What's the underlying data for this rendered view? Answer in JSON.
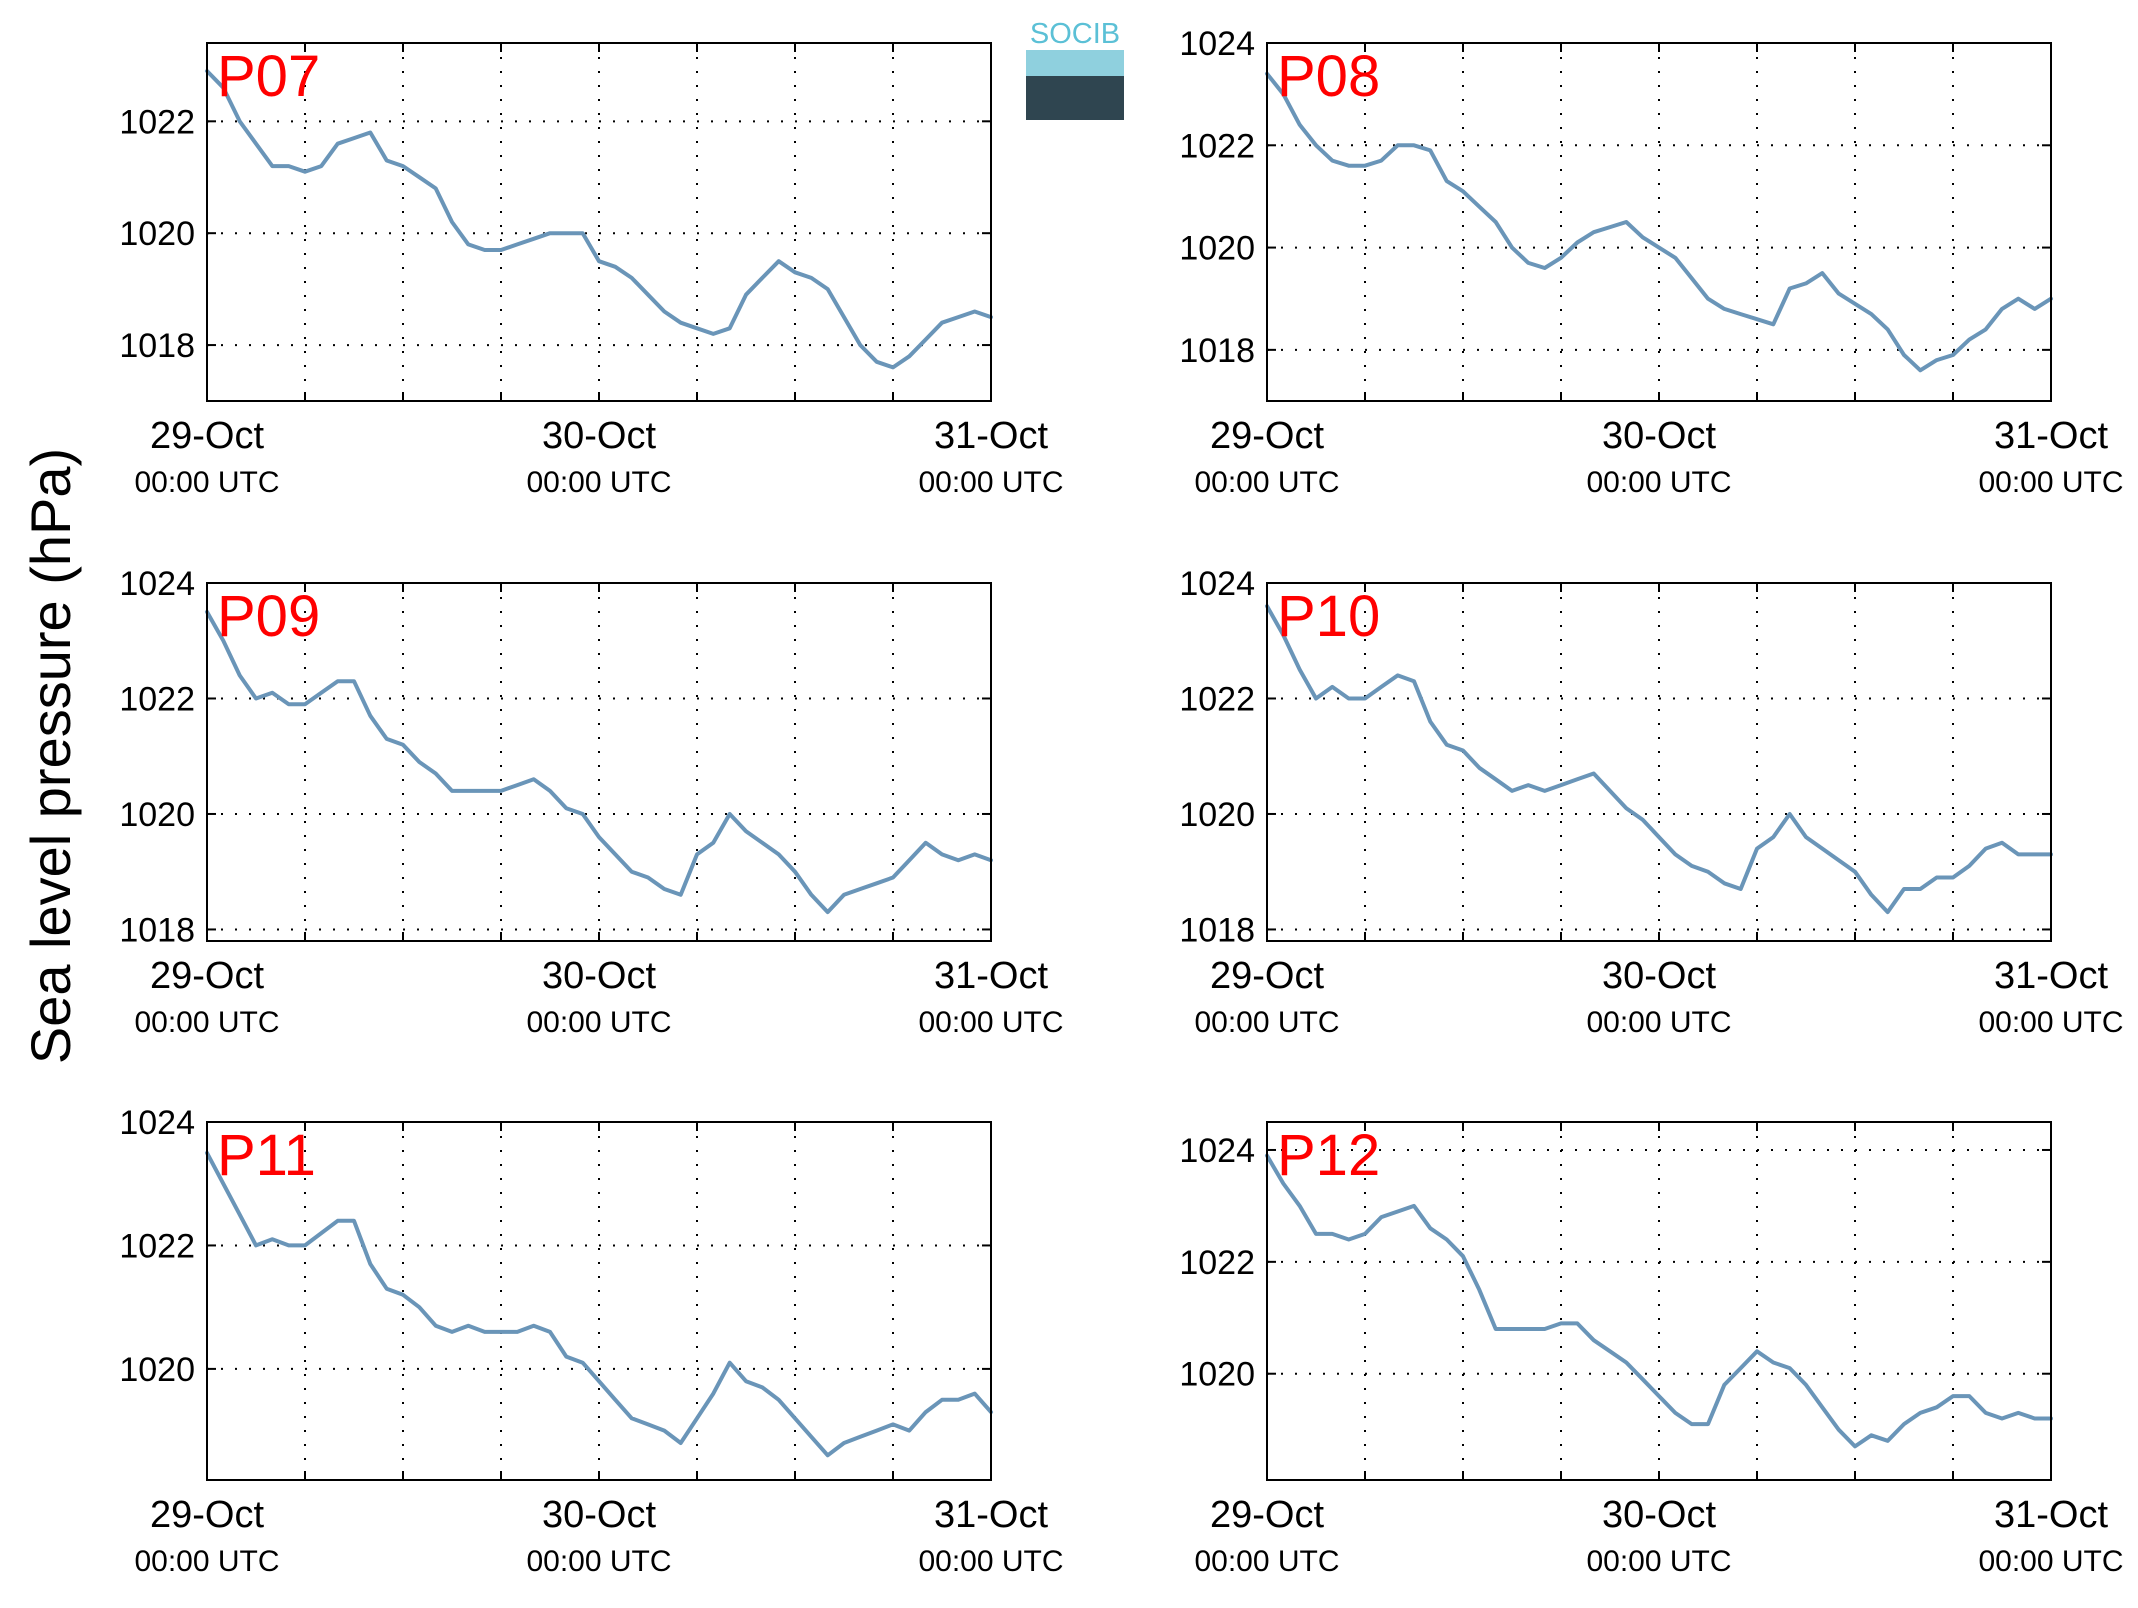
{
  "ylabel": "Sea level pressure (hPa)",
  "logo": {
    "text": "SOCIB",
    "color_top": "#5bc0d6",
    "color_bottom": "#2f4550"
  },
  "colors": {
    "line": "#6a95b8",
    "station_label": "#ff0000",
    "axis": "#000000",
    "grid": "#000000"
  },
  "xticks": [
    {
      "day": "29-Oct",
      "time": "00:00 UTC"
    },
    {
      "day": "30-Oct",
      "time": "00:00 UTC"
    },
    {
      "day": "31-Oct",
      "time": "00:00 UTC"
    }
  ],
  "chart_data": [
    {
      "type": "line",
      "station": "P07",
      "x_range": [
        "29-Oct 00:00 UTC",
        "31-Oct 00:00 UTC"
      ],
      "x_unit": "hours",
      "ylim": [
        1017,
        1023.4
      ],
      "yticks": [
        1018,
        1020,
        1022
      ],
      "grid": true,
      "series": [
        {
          "x": [
            0,
            1,
            2,
            3,
            4,
            5,
            6,
            7,
            8,
            9,
            10,
            11,
            12,
            13,
            14,
            15,
            16,
            17,
            18,
            19,
            20,
            21,
            22,
            23,
            24,
            25,
            26,
            27,
            28,
            29,
            30,
            31,
            32,
            33,
            34,
            35,
            36,
            37,
            38,
            39,
            40,
            41,
            42,
            43,
            44,
            45,
            46,
            47,
            48
          ],
          "values": [
            1022.9,
            1022.6,
            1022.0,
            1021.6,
            1021.2,
            1021.2,
            1021.1,
            1021.2,
            1021.6,
            1021.7,
            1021.8,
            1021.3,
            1021.2,
            1021.0,
            1020.8,
            1020.2,
            1019.8,
            1019.7,
            1019.7,
            1019.8,
            1019.9,
            1020.0,
            1020.0,
            1020.0,
            1019.5,
            1019.4,
            1019.2,
            1018.9,
            1018.6,
            1018.4,
            1018.3,
            1018.2,
            1018.3,
            1018.9,
            1019.2,
            1019.5,
            1019.3,
            1019.2,
            1019.0,
            1018.5,
            1018.0,
            1017.7,
            1017.6,
            1017.8,
            1018.1,
            1018.4,
            1018.5,
            1018.6,
            1018.5
          ]
        }
      ]
    },
    {
      "type": "line",
      "station": "P08",
      "x_range": [
        "29-Oct 00:00 UTC",
        "31-Oct 00:00 UTC"
      ],
      "x_unit": "hours",
      "ylim": [
        1017,
        1024
      ],
      "yticks": [
        1018,
        1020,
        1022,
        1024
      ],
      "grid": true,
      "series": [
        {
          "x": [
            0,
            1,
            2,
            3,
            4,
            5,
            6,
            7,
            8,
            9,
            10,
            11,
            12,
            13,
            14,
            15,
            16,
            17,
            18,
            19,
            20,
            21,
            22,
            23,
            24,
            25,
            26,
            27,
            28,
            29,
            30,
            31,
            32,
            33,
            34,
            35,
            36,
            37,
            38,
            39,
            40,
            41,
            42,
            43,
            44,
            45,
            46,
            47,
            48
          ],
          "values": [
            1023.4,
            1023.0,
            1022.4,
            1022.0,
            1021.7,
            1021.6,
            1021.6,
            1021.7,
            1022.0,
            1022.0,
            1021.9,
            1021.3,
            1021.1,
            1020.8,
            1020.5,
            1020.0,
            1019.7,
            1019.6,
            1019.8,
            1020.1,
            1020.3,
            1020.4,
            1020.5,
            1020.2,
            1020.0,
            1019.8,
            1019.4,
            1019.0,
            1018.8,
            1018.7,
            1018.6,
            1018.5,
            1019.2,
            1019.3,
            1019.5,
            1019.1,
            1018.9,
            1018.7,
            1018.4,
            1017.9,
            1017.6,
            1017.8,
            1017.9,
            1018.2,
            1018.4,
            1018.8,
            1019.0,
            1018.8,
            1019.0
          ]
        }
      ]
    },
    {
      "type": "line",
      "station": "P09",
      "x_range": [
        "29-Oct 00:00 UTC",
        "31-Oct 00:00 UTC"
      ],
      "x_unit": "hours",
      "ylim": [
        1017.8,
        1024
      ],
      "yticks": [
        1018,
        1020,
        1022,
        1024
      ],
      "grid": true,
      "series": [
        {
          "x": [
            0,
            1,
            2,
            3,
            4,
            5,
            6,
            7,
            8,
            9,
            10,
            11,
            12,
            13,
            14,
            15,
            16,
            17,
            18,
            19,
            20,
            21,
            22,
            23,
            24,
            25,
            26,
            27,
            28,
            29,
            30,
            31,
            32,
            33,
            34,
            35,
            36,
            37,
            38,
            39,
            40,
            41,
            42,
            43,
            44,
            45,
            46,
            47,
            48
          ],
          "values": [
            1023.5,
            1023.0,
            1022.4,
            1022.0,
            1022.1,
            1021.9,
            1021.9,
            1022.1,
            1022.3,
            1022.3,
            1021.7,
            1021.3,
            1021.2,
            1020.9,
            1020.7,
            1020.4,
            1020.4,
            1020.4,
            1020.4,
            1020.5,
            1020.6,
            1020.4,
            1020.1,
            1020.0,
            1019.6,
            1019.3,
            1019.0,
            1018.9,
            1018.7,
            1018.6,
            1019.3,
            1019.5,
            1020.0,
            1019.7,
            1019.5,
            1019.3,
            1019.0,
            1018.6,
            1018.3,
            1018.6,
            1018.7,
            1018.8,
            1018.9,
            1019.2,
            1019.5,
            1019.3,
            1019.2,
            1019.3,
            1019.2
          ]
        }
      ]
    },
    {
      "type": "line",
      "station": "P10",
      "x_range": [
        "29-Oct 00:00 UTC",
        "31-Oct 00:00 UTC"
      ],
      "x_unit": "hours",
      "ylim": [
        1017.8,
        1024
      ],
      "yticks": [
        1018,
        1020,
        1022,
        1024
      ],
      "grid": true,
      "series": [
        {
          "x": [
            0,
            1,
            2,
            3,
            4,
            5,
            6,
            7,
            8,
            9,
            10,
            11,
            12,
            13,
            14,
            15,
            16,
            17,
            18,
            19,
            20,
            21,
            22,
            23,
            24,
            25,
            26,
            27,
            28,
            29,
            30,
            31,
            32,
            33,
            34,
            35,
            36,
            37,
            38,
            39,
            40,
            41,
            42,
            43,
            44,
            45,
            46,
            47,
            48
          ],
          "values": [
            1023.6,
            1023.1,
            1022.5,
            1022.0,
            1022.2,
            1022.0,
            1022.0,
            1022.2,
            1022.4,
            1022.3,
            1021.6,
            1021.2,
            1021.1,
            1020.8,
            1020.6,
            1020.4,
            1020.5,
            1020.4,
            1020.5,
            1020.6,
            1020.7,
            1020.4,
            1020.1,
            1019.9,
            1019.6,
            1019.3,
            1019.1,
            1019.0,
            1018.8,
            1018.7,
            1019.4,
            1019.6,
            1020.0,
            1019.6,
            1019.4,
            1019.2,
            1019.0,
            1018.6,
            1018.3,
            1018.7,
            1018.7,
            1018.9,
            1018.9,
            1019.1,
            1019.4,
            1019.5,
            1019.3,
            1019.3,
            1019.3
          ]
        }
      ]
    },
    {
      "type": "line",
      "station": "P11",
      "x_range": [
        "29-Oct 00:00 UTC",
        "31-Oct 00:00 UTC"
      ],
      "x_unit": "hours",
      "ylim": [
        1018.2,
        1024
      ],
      "yticks": [
        1020,
        1022,
        1024
      ],
      "grid": true,
      "series": [
        {
          "x": [
            0,
            1,
            2,
            3,
            4,
            5,
            6,
            7,
            8,
            9,
            10,
            11,
            12,
            13,
            14,
            15,
            16,
            17,
            18,
            19,
            20,
            21,
            22,
            23,
            24,
            25,
            26,
            27,
            28,
            29,
            30,
            31,
            32,
            33,
            34,
            35,
            36,
            37,
            38,
            39,
            40,
            41,
            42,
            43,
            44,
            45,
            46,
            47,
            48
          ],
          "values": [
            1023.5,
            1023.0,
            1022.5,
            1022.0,
            1022.1,
            1022.0,
            1022.0,
            1022.2,
            1022.4,
            1022.4,
            1021.7,
            1021.3,
            1021.2,
            1021.0,
            1020.7,
            1020.6,
            1020.7,
            1020.6,
            1020.6,
            1020.6,
            1020.7,
            1020.6,
            1020.2,
            1020.1,
            1019.8,
            1019.5,
            1019.2,
            1019.1,
            1019.0,
            1018.8,
            1019.2,
            1019.6,
            1020.1,
            1019.8,
            1019.7,
            1019.5,
            1019.2,
            1018.9,
            1018.6,
            1018.8,
            1018.9,
            1019.0,
            1019.1,
            1019.0,
            1019.3,
            1019.5,
            1019.5,
            1019.6,
            1019.3
          ]
        }
      ]
    },
    {
      "type": "line",
      "station": "P12",
      "x_range": [
        "29-Oct 00:00 UTC",
        "31-Oct 00:00 UTC"
      ],
      "x_unit": "hours",
      "ylim": [
        1018.1,
        1024.5
      ],
      "yticks": [
        1020,
        1022,
        1024
      ],
      "grid": true,
      "series": [
        {
          "x": [
            0,
            1,
            2,
            3,
            4,
            5,
            6,
            7,
            8,
            9,
            10,
            11,
            12,
            13,
            14,
            15,
            16,
            17,
            18,
            19,
            20,
            21,
            22,
            23,
            24,
            25,
            26,
            27,
            28,
            29,
            30,
            31,
            32,
            33,
            34,
            35,
            36,
            37,
            38,
            39,
            40,
            41,
            42,
            43,
            44,
            45,
            46,
            47,
            48
          ],
          "values": [
            1023.9,
            1023.4,
            1023.0,
            1022.5,
            1022.5,
            1022.4,
            1022.5,
            1022.8,
            1022.9,
            1023.0,
            1022.6,
            1022.4,
            1022.1,
            1021.5,
            1020.8,
            1020.8,
            1020.8,
            1020.8,
            1020.9,
            1020.9,
            1020.6,
            1020.4,
            1020.2,
            1019.9,
            1019.6,
            1019.3,
            1019.1,
            1019.1,
            1019.8,
            1020.1,
            1020.4,
            1020.2,
            1020.1,
            1019.8,
            1019.4,
            1019.0,
            1018.7,
            1018.9,
            1018.8,
            1019.1,
            1019.3,
            1019.4,
            1019.6,
            1019.6,
            1019.3,
            1019.2,
            1019.3,
            1019.2,
            1019.2
          ]
        }
      ]
    }
  ]
}
